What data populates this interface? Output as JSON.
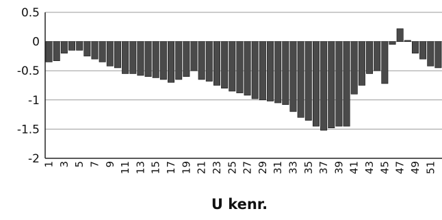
{
  "chart_data": {
    "type": "bar",
    "title": "U kenr.",
    "categories": [
      "1",
      null,
      "3",
      null,
      "5",
      null,
      "7",
      null,
      "9",
      null,
      "11",
      null,
      "13",
      null,
      "15",
      null,
      "17",
      null,
      "19",
      null,
      "21",
      null,
      "23",
      null,
      "25",
      null,
      "27",
      null,
      "29",
      null,
      "31",
      null,
      "33",
      null,
      "35",
      null,
      "37",
      null,
      "39",
      null,
      "41",
      null,
      "43",
      null,
      "45",
      null,
      "47",
      null,
      "49",
      null,
      "51",
      null
    ],
    "values": [
      -0.35,
      -0.33,
      -0.2,
      -0.15,
      -0.15,
      -0.25,
      -0.3,
      -0.35,
      -0.42,
      -0.45,
      -0.55,
      -0.55,
      -0.58,
      -0.6,
      -0.62,
      -0.65,
      -0.7,
      -0.65,
      -0.6,
      -0.5,
      -0.65,
      -0.68,
      -0.75,
      -0.8,
      -0.85,
      -0.88,
      -0.92,
      -0.98,
      -1.0,
      -1.02,
      -1.05,
      -1.08,
      -1.2,
      -1.3,
      -1.35,
      -1.45,
      -1.52,
      -1.48,
      -1.45,
      -1.45,
      -0.9,
      -0.75,
      -0.55,
      -0.5,
      -0.72,
      -0.05,
      0.22,
      0.02,
      -0.2,
      -0.3,
      -0.42,
      -0.45
    ],
    "color": "#4a4a4a",
    "ylim": [
      -2,
      0.5
    ],
    "yticks": [
      0.5,
      0,
      -0.5,
      -1,
      -1.5,
      -2
    ],
    "grid": true
  }
}
